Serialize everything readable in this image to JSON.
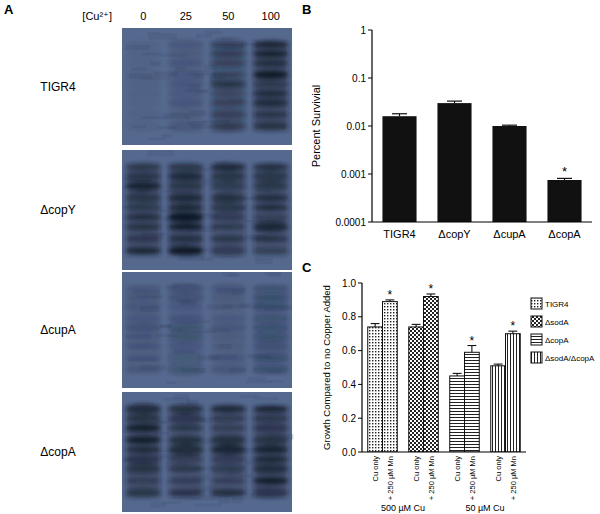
{
  "chart_data": [
    {
      "type": "bar",
      "panel": "B",
      "y_label": "Percent Survivial",
      "categories": [
        "TIGR4",
        "ΔcopY",
        "ΔcupA",
        "ΔcopA"
      ],
      "values": [
        0.016,
        0.03,
        0.01,
        0.00075
      ],
      "errors": [
        0.002,
        0.003,
        0.0004,
        6e-05
      ],
      "color": "#111111",
      "log": "y",
      "ylim": [
        0.0001,
        1
      ],
      "yticks": [
        0.0001,
        0.001,
        0.01,
        0.1,
        1
      ],
      "annotations": [
        {
          "text": "*",
          "category": 3
        }
      ]
    },
    {
      "type": "bar",
      "panel": "C",
      "y_label": "Growth Compared to no Copper Added",
      "categories": [
        "Cu only",
        "+ 250 µM Mn",
        "Cu only",
        "+ 250 µM Mn",
        "Cu only",
        "+ 250 µM Mn",
        "Cu only",
        "+ 250 µM Mn"
      ],
      "groups": [
        {
          "label": "500 µM Cu",
          "from": 0,
          "to": 3
        },
        {
          "label": "50 µM Cu",
          "from": 4,
          "to": 7
        }
      ],
      "series": [
        {
          "name": "TIGR4",
          "color": "#111111",
          "values": [
            0.74,
            0.89,
            null,
            null,
            null,
            null,
            null,
            null
          ],
          "errors": [
            0.02,
            0.01,
            null,
            null,
            null,
            null,
            null,
            null
          ]
        },
        {
          "name": "ΔsodA",
          "color": "#111111",
          "values": [
            null,
            null,
            0.74,
            0.92,
            null,
            null,
            null,
            null
          ],
          "errors": [
            null,
            null,
            0.015,
            0.015,
            null,
            null,
            null,
            null
          ]
        },
        {
          "name": "ΔcopA",
          "color": "#111111",
          "values": [
            null,
            null,
            null,
            null,
            0.45,
            0.59,
            null,
            null
          ],
          "errors": [
            null,
            null,
            null,
            null,
            0.015,
            0.04,
            null,
            null
          ]
        },
        {
          "name": "ΔsodA/ΔcopA",
          "color": "#111111",
          "values": [
            null,
            null,
            null,
            null,
            null,
            null,
            0.51,
            0.7
          ],
          "errors": [
            null,
            null,
            null,
            null,
            null,
            null,
            0.01,
            0.015
          ]
        }
      ],
      "legend": "right",
      "ylim": [
        0,
        1
      ],
      "yticks": [
        {
          "value": 0,
          "label": "0.0"
        },
        0.2,
        0.4,
        0.6,
        0.8,
        {
          "value": 1,
          "label": "1.0"
        }
      ],
      "annotations": [
        {
          "text": "*",
          "category": 1
        },
        {
          "text": "*",
          "category": 3
        },
        {
          "text": "*",
          "category": 5
        },
        {
          "text": "*",
          "category": 7
        }
      ]
    }
  ],
  "blot": {
    "panel": "A",
    "concentration_label": "[Cu²⁺]",
    "concentrations": [
      0,
      25,
      50,
      100
    ],
    "strains": [
      "TIGR4",
      "ΔcopY",
      "ΔcupA",
      "ΔcopA"
    ]
  }
}
